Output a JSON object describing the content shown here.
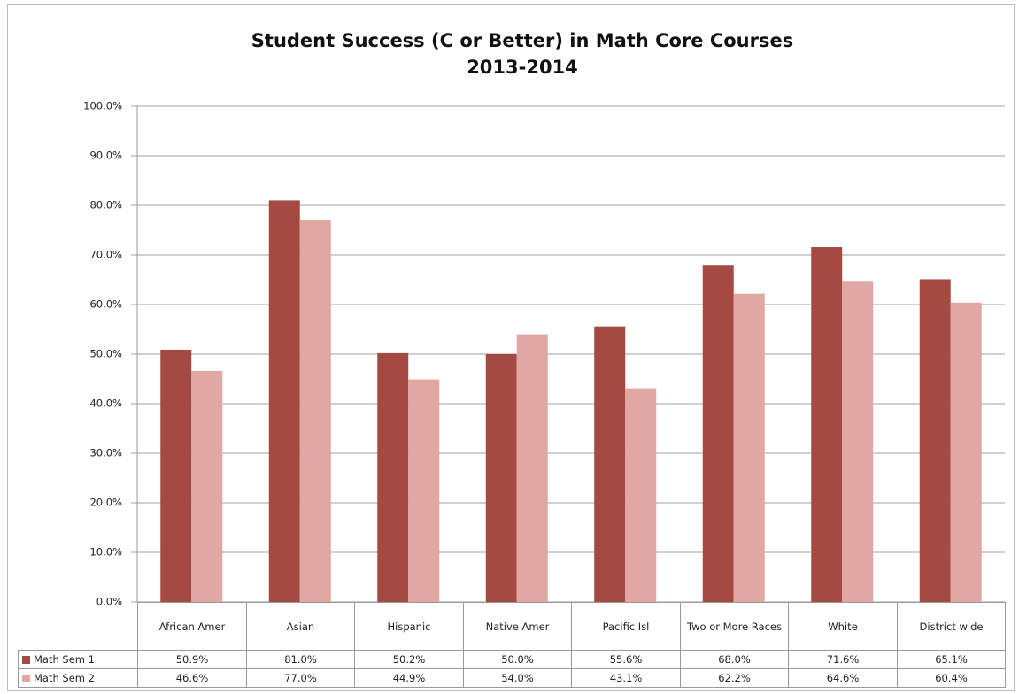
{
  "chart_data": {
    "type": "bar",
    "title": "Student Success (C or Better) in Math Core Courses",
    "subtitle": "2013-2014",
    "categories": [
      "African Amer",
      "Asian",
      "Hispanic",
      "Native Amer",
      "Pacific Isl",
      "Two or More Races",
      "White",
      "District wide"
    ],
    "series": [
      {
        "name": "Math Sem 1",
        "color": "#a54a42",
        "values": [
          50.9,
          81.0,
          50.2,
          50.0,
          55.6,
          68.0,
          71.6,
          65.1
        ],
        "value_labels": [
          "50.9%",
          "81.0%",
          "50.2%",
          "50.0%",
          "55.6%",
          "68.0%",
          "71.6%",
          "65.1%"
        ]
      },
      {
        "name": "Math Sem 2",
        "color": "#e0a7a3",
        "values": [
          46.6,
          77.0,
          44.9,
          54.0,
          43.1,
          62.2,
          64.6,
          60.4
        ],
        "value_labels": [
          "46.6%",
          "77.0%",
          "44.9%",
          "54.0%",
          "43.1%",
          "62.2%",
          "64.6%",
          "60.4%"
        ]
      }
    ],
    "ylim": [
      0,
      100
    ],
    "yticks": [
      {
        "value": 0,
        "label": "0.0%"
      },
      {
        "value": 10,
        "label": "10.0%"
      },
      {
        "value": 20,
        "label": "20.0%"
      },
      {
        "value": 30,
        "label": "30.0%"
      },
      {
        "value": 40,
        "label": "40.0%"
      },
      {
        "value": 50,
        "label": "50.0%"
      },
      {
        "value": 60,
        "label": "60.0%"
      },
      {
        "value": 70,
        "label": "70.0%"
      },
      {
        "value": 80,
        "label": "80.0%"
      },
      {
        "value": 90,
        "label": "90.0%"
      },
      {
        "value": 100,
        "label": "100.0%"
      }
    ],
    "grid": true
  }
}
